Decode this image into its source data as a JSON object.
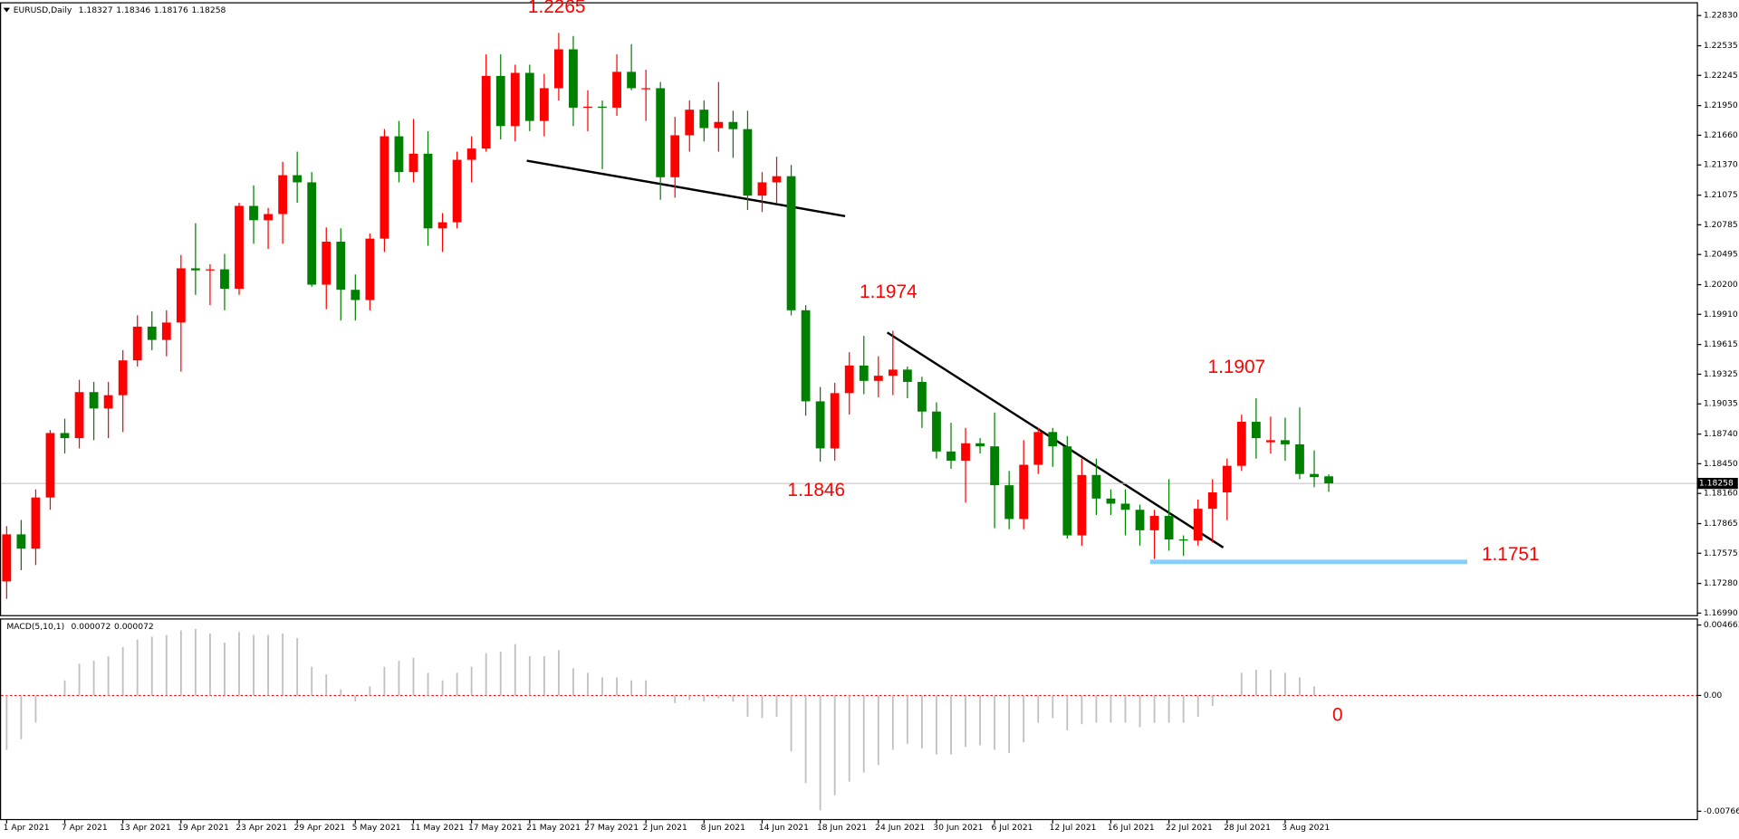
{
  "chart_data": [
    {
      "type": "candlestick",
      "title": "EURUSD,Daily",
      "header_values": [
        1.18327,
        1.18346,
        1.18176,
        1.18258
      ],
      "categories": [
        "1 Apr 2021",
        null,
        null,
        null,
        "7 Apr 2021",
        null,
        null,
        null,
        "13 Apr 2021",
        null,
        null,
        null,
        "19 Apr 2021",
        null,
        null,
        null,
        "23 Apr 2021",
        null,
        null,
        null,
        "29 Apr 2021",
        null,
        null,
        null,
        "5 May 2021",
        null,
        null,
        null,
        "11 May 2021",
        null,
        null,
        null,
        "17 May 2021",
        null,
        null,
        null,
        "21 May 2021",
        null,
        null,
        null,
        "27 May 2021",
        null,
        null,
        null,
        "2 Jun 2021",
        null,
        null,
        null,
        "8 Jun 2021",
        null,
        null,
        null,
        "14 Jun 2021",
        null,
        null,
        null,
        "18 Jun 2021",
        null,
        null,
        null,
        "24 Jun 2021",
        null,
        null,
        null,
        "30 Jun 2021",
        null,
        null,
        null,
        "6 Jul 2021",
        null,
        null,
        null,
        "12 Jul 2021",
        null,
        null,
        null,
        "16 Jul 2021",
        null,
        null,
        null,
        "22 Jul 2021",
        null,
        null,
        null,
        "28 Jul 2021",
        null,
        null,
        null,
        "3 Aug 2021",
        null,
        null,
        null
      ],
      "open": [
        1.173,
        1.1776,
        1.1762,
        1.1812,
        1.1875,
        1.187,
        1.1915,
        1.1899,
        1.1912,
        1.1946,
        1.1979,
        1.1966,
        1.1983,
        1.2036,
        1.2034,
        1.2035,
        1.2016,
        1.2097,
        1.2083,
        1.2089,
        1.2127,
        1.212,
        1.202,
        1.2062,
        1.2015,
        1.2005,
        1.2065,
        1.2165,
        1.213,
        1.2148,
        1.2075,
        1.2081,
        1.2142,
        1.2153,
        1.2224,
        1.2175,
        1.2227,
        1.218,
        1.2212,
        1.225,
        1.2193,
        1.2194,
        1.2193,
        1.2228,
        1.2212,
        1.2212,
        1.2125,
        1.2166,
        1.2191,
        1.2173,
        1.2179,
        1.2172,
        1.2107,
        1.212,
        1.2126,
        1.1995,
        1.1906,
        1.186,
        1.1914,
        1.1941,
        1.1926,
        1.1931,
        1.1937,
        1.1925,
        1.1896,
        1.1857,
        1.1848,
        1.1865,
        1.1862,
        1.1824,
        1.1791,
        1.1844,
        1.1876,
        1.1862,
        1.1775,
        1.1834,
        1.1811,
        1.1806,
        1.18,
        1.178,
        1.1794,
        1.1771,
        1.177,
        1.1801,
        1.1817,
        1.1843,
        1.1886,
        1.1866,
        1.1868,
        1.1864,
        1.1835,
        1.18327
      ],
      "high": [
        1.1784,
        1.179,
        1.182,
        1.1878,
        1.1889,
        1.1927,
        1.1925,
        1.1925,
        1.1956,
        1.199,
        1.1994,
        1.1995,
        1.2049,
        1.208,
        1.204,
        1.205,
        1.21,
        1.2117,
        1.2095,
        1.214,
        1.215,
        1.213,
        1.2076,
        1.2075,
        1.203,
        1.207,
        1.2172,
        1.218,
        1.2182,
        1.217,
        1.209,
        1.215,
        1.2165,
        1.2245,
        1.2245,
        1.2235,
        1.2235,
        1.2226,
        1.2266,
        1.2263,
        1.221,
        1.22,
        1.2245,
        1.2255,
        1.223,
        1.2218,
        1.2184,
        1.22,
        1.22,
        1.2218,
        1.219,
        1.219,
        1.213,
        1.2145,
        1.2137,
        1.2,
        1.192,
        1.1924,
        1.1954,
        1.197,
        1.195,
        1.1975,
        1.194,
        1.193,
        1.1905,
        1.1885,
        1.188,
        1.187,
        1.1895,
        1.1838,
        1.1868,
        1.188,
        1.188,
        1.1872,
        1.185,
        1.185,
        1.182,
        1.182,
        1.1805,
        1.18,
        1.183,
        1.1775,
        1.181,
        1.183,
        1.185,
        1.1893,
        1.1909,
        1.1891,
        1.189,
        1.19,
        1.1858,
        1.18346
      ],
      "low": [
        1.1713,
        1.1741,
        1.1746,
        1.18,
        1.1855,
        1.186,
        1.1868,
        1.187,
        1.1876,
        1.194,
        1.1956,
        1.195,
        1.1935,
        1.201,
        1.2,
        1.1995,
        1.201,
        1.206,
        1.2055,
        1.206,
        1.21,
        1.2018,
        1.1996,
        1.1985,
        1.1985,
        1.1995,
        1.2052,
        1.212,
        1.212,
        1.2058,
        1.2052,
        1.2075,
        1.212,
        1.215,
        1.2162,
        1.216,
        1.217,
        1.2165,
        1.22,
        1.2175,
        1.217,
        1.2133,
        1.2185,
        1.221,
        1.218,
        1.2103,
        1.2105,
        1.215,
        1.216,
        1.215,
        1.2144,
        1.2093,
        1.2091,
        1.21,
        1.199,
        1.1892,
        1.1847,
        1.1848,
        1.1893,
        1.1913,
        1.191,
        1.1912,
        1.1909,
        1.188,
        1.185,
        1.184,
        1.1807,
        1.1855,
        1.1782,
        1.1781,
        1.1781,
        1.1835,
        1.1842,
        1.1772,
        1.1765,
        1.1795,
        1.1795,
        1.1775,
        1.1765,
        1.1752,
        1.176,
        1.1755,
        1.1765,
        1.1768,
        1.179,
        1.1838,
        1.185,
        1.1855,
        1.1848,
        1.183,
        1.1822,
        1.18176
      ],
      "close": [
        1.1776,
        1.1762,
        1.1812,
        1.1875,
        1.187,
        1.1915,
        1.1899,
        1.1912,
        1.1946,
        1.1979,
        1.1966,
        1.1983,
        1.2036,
        1.2034,
        1.2035,
        1.2016,
        1.2097,
        1.2083,
        1.2089,
        1.2127,
        1.212,
        1.202,
        1.2062,
        1.2015,
        1.2005,
        1.2065,
        1.2165,
        1.213,
        1.2148,
        1.2075,
        1.2081,
        1.2142,
        1.2153,
        1.2224,
        1.2175,
        1.2227,
        1.218,
        1.2212,
        1.225,
        1.2193,
        1.2194,
        1.2193,
        1.2228,
        1.2212,
        1.2212,
        1.2125,
        1.2166,
        1.2191,
        1.2173,
        1.2179,
        1.2172,
        1.2107,
        1.212,
        1.2126,
        1.1995,
        1.1906,
        1.186,
        1.1914,
        1.1941,
        1.1926,
        1.1931,
        1.1937,
        1.1925,
        1.1896,
        1.1857,
        1.1848,
        1.1865,
        1.1862,
        1.1824,
        1.1791,
        1.1844,
        1.1876,
        1.1862,
        1.1775,
        1.1834,
        1.1811,
        1.1806,
        1.18,
        1.178,
        1.1794,
        1.1771,
        1.177,
        1.1801,
        1.1817,
        1.1843,
        1.1886,
        1.187,
        1.1868,
        1.1864,
        1.1835,
        1.1832,
        1.18258
      ],
      "up_color": "#ff0000",
      "down_color": "#008000",
      "ylim": [
        1.1696,
        1.2296
      ],
      "yticks": [
        {
          "value": 1.2283,
          "label": "1.22830"
        },
        1.22535,
        1.22245,
        {
          "value": 1.2195,
          "label": "1.21950"
        },
        {
          "value": 1.2166,
          "label": "1.21660"
        },
        {
          "value": 1.2137,
          "label": "1.21370"
        },
        1.21075,
        1.20785,
        1.20495,
        {
          "value": 1.202,
          "label": "1.20200"
        },
        {
          "value": 1.1991,
          "label": "1.19910"
        },
        1.19615,
        1.19325,
        1.19035,
        {
          "value": 1.1874,
          "label": "1.18740"
        },
        {
          "value": 1.1845,
          "label": "1.18450"
        },
        {
          "value": 1.1816,
          "label": "1.18160"
        },
        1.17865,
        1.17575,
        {
          "value": 1.1728,
          "label": "1.17280"
        },
        {
          "value": 1.1699,
          "label": "1.16990"
        }
      ],
      "current_price": 1.18258,
      "annotations": [
        "1.2265",
        "1.1974",
        "1.1846",
        "1.1907",
        "1.1751"
      ]
    },
    {
      "type": "bar",
      "title": "MACD(5,10,1)",
      "header_values": [
        7.2e-05,
        7.2e-05
      ],
      "values": [
        -0.0036,
        -0.0029,
        -0.0018,
        0.0001,
        0.001,
        0.0021,
        0.0023,
        0.0026,
        0.0032,
        0.0037,
        0.0039,
        0.004,
        0.0043,
        0.0044,
        0.0041,
        0.0035,
        0.0042,
        0.004,
        0.004,
        0.0041,
        0.0038,
        0.0019,
        0.0014,
        0.0004,
        -0.0004,
        0.0006,
        0.0019,
        0.0023,
        0.0025,
        0.0015,
        0.001,
        0.0015,
        0.0019,
        0.0028,
        0.0029,
        0.0034,
        0.0026,
        0.0026,
        0.003,
        0.0018,
        0.0015,
        0.0012,
        0.0012,
        0.001,
        0.001,
        -0.0001,
        -0.0005,
        -0.0003,
        -0.0004,
        -0.0002,
        -0.0004,
        -0.0014,
        -0.0015,
        -0.0014,
        -0.0037,
        -0.0058,
        -0.0076,
        -0.0066,
        -0.0057,
        -0.0051,
        -0.0046,
        -0.0036,
        -0.0032,
        -0.0035,
        -0.0039,
        -0.0039,
        -0.0034,
        -0.0033,
        -0.0036,
        -0.0038,
        -0.0031,
        -0.0018,
        -0.0015,
        -0.0023,
        -0.0019,
        -0.0018,
        -0.0018,
        -0.0018,
        -0.0021,
        -0.0018,
        -0.0018,
        -0.0018,
        -0.0014,
        -0.0007,
        -0.0001,
        0.0015,
        0.0017,
        0.0017,
        0.0015,
        0.0012,
        0.0006,
        7.2e-05
      ],
      "color": "#c0c0c0",
      "zero_color": "#ff0000",
      "ylim": [
        -0.00825,
        0.0051
      ],
      "yticks": [
        0.004663,
        {
          "value": 0,
          "label": "0.00"
        },
        -0.007661
      ],
      "annotations": [
        "0"
      ]
    }
  ]
}
